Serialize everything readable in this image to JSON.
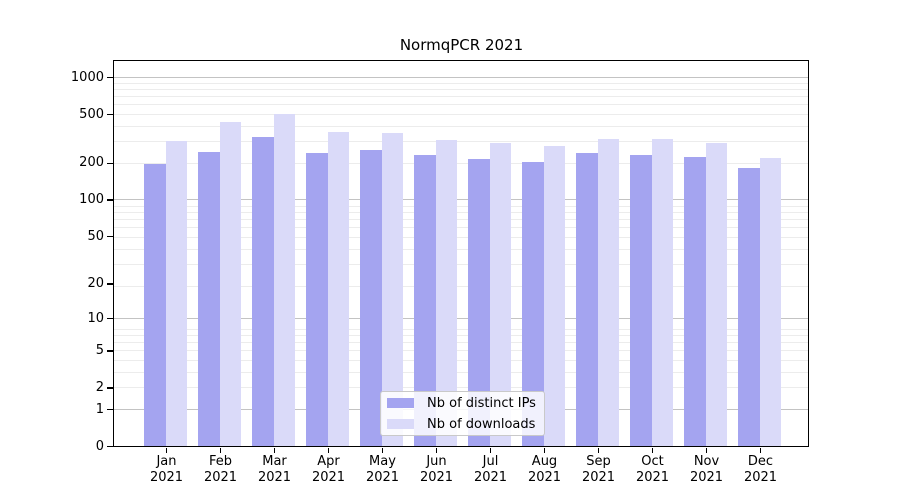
{
  "figure": {
    "title": "NormqPCR 2021"
  },
  "chart_data": {
    "type": "bar",
    "title": "NormqPCR 2021",
    "categories": [
      "Jan",
      "Feb",
      "Mar",
      "Apr",
      "May",
      "Jun",
      "Jul",
      "Aug",
      "Sep",
      "Oct",
      "Nov",
      "Dec"
    ],
    "x_tick_year_line": "2021",
    "series": [
      {
        "name": "Nb of distinct IPs",
        "color": "#a4a4f0",
        "values": [
          195,
          246,
          322,
          240,
          255,
          231,
          214,
          204,
          241,
          232,
          224,
          180
        ]
      },
      {
        "name": "Nb of downloads",
        "color": "#dadaf9",
        "values": [
          299,
          427,
          497,
          356,
          347,
          307,
          291,
          275,
          314,
          313,
          289,
          219
        ]
      }
    ],
    "y_axis": {
      "scale": "log10(value+1)",
      "tick_values": [
        0,
        1,
        2,
        5,
        10,
        20,
        50,
        100,
        200,
        500,
        1000
      ],
      "tick_labels": [
        "0",
        "1",
        "2",
        "5",
        "10",
        "20",
        "50",
        "100",
        "200",
        "500",
        "1000"
      ]
    },
    "legend": {
      "entries": [
        "Nb of distinct IPs",
        "Nb of downloads"
      ],
      "position": "lower center"
    },
    "grid": {
      "major_values": [
        1,
        10,
        100,
        1000
      ],
      "minor": true
    },
    "colors": {
      "major_grid": "#c3c3c3",
      "minor_grid": "#ececec",
      "axis": "#000000",
      "background": "#ffffff"
    },
    "layout": {
      "xlabel": "",
      "ylabel": "",
      "bar_group_gap": true
    }
  }
}
